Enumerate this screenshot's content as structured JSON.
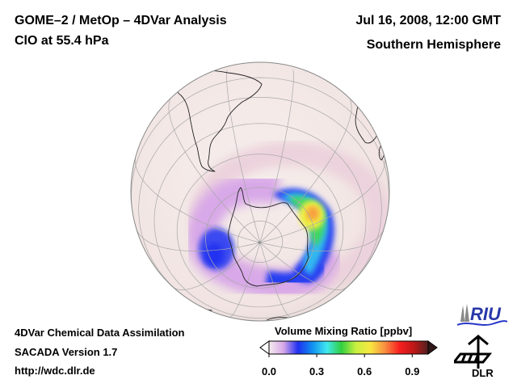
{
  "header": {
    "title_line1": "GOME–2 / MetOp – 4DVar Analysis",
    "title_line2": "ClO at 55.4 hPa",
    "date": "Jul 16, 2008, 12:00 GMT",
    "hemisphere": "Southern Hemisphere"
  },
  "footer": {
    "line1": "4DVar Chemical Data Assimilation",
    "line2": "SACADA Version 1.7",
    "line3": "http://wdc.dlr.de"
  },
  "colorbar": {
    "title": "Volume Mixing Ratio [ppbv]",
    "range": [
      0.0,
      1.0
    ],
    "ticks": [
      "0.0",
      "0.3",
      "0.6",
      "0.9"
    ],
    "tick_values": [
      0.0,
      0.3,
      0.6,
      0.9
    ],
    "extend": "both",
    "colors": [
      "#f5ecee",
      "#d8a8e8",
      "#2030f0",
      "#1090f0",
      "#40e8f0",
      "#30d040",
      "#c8f040",
      "#f8e840",
      "#f89040",
      "#f82020",
      "#c01818",
      "#502020"
    ]
  },
  "map": {
    "projection": "orthographic",
    "hemisphere": "south",
    "background_color": "#f3e8e6",
    "graticule_color": "#a0a0a0",
    "coastline_color": "#222222",
    "features": {
      "vortex_max_region": "Indian Ocean sector of Antarctic edge",
      "peak_value_ppbv": 0.7
    }
  },
  "logos": {
    "riu": "RIU",
    "dlr": "DLR"
  }
}
